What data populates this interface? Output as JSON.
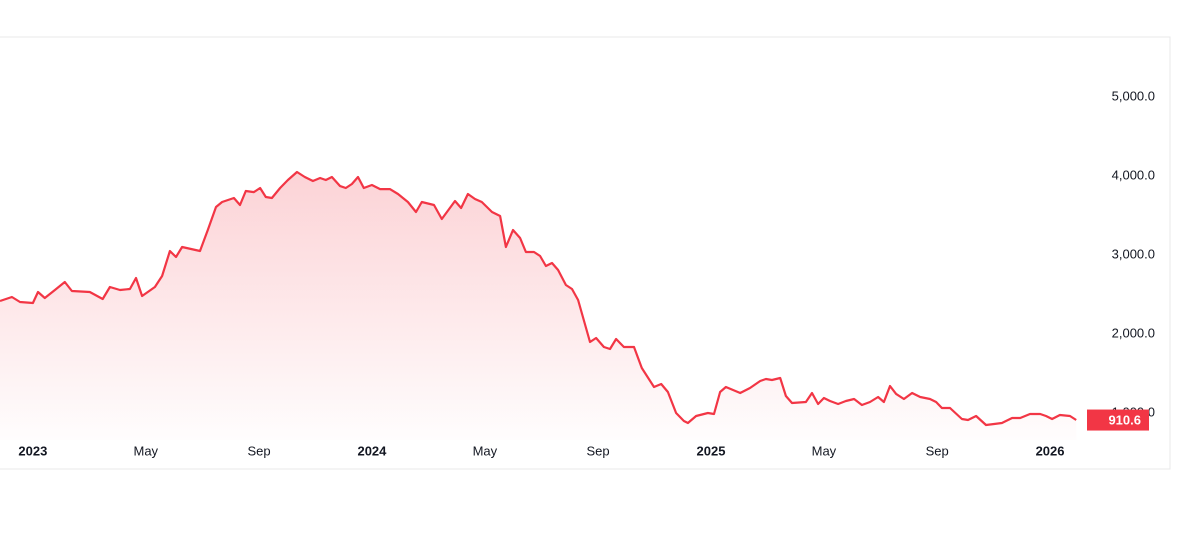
{
  "chart_data": {
    "type": "line",
    "x": [
      2022.903,
      2022.938,
      2022.962,
      2023.0,
      2023.015,
      2023.035,
      2023.065,
      2023.094,
      2023.115,
      2023.168,
      2023.206,
      2023.227,
      2023.257,
      2023.286,
      2023.304,
      2023.322,
      2023.36,
      2023.381,
      2023.404,
      2023.422,
      2023.44,
      2023.493,
      2023.516,
      2023.54,
      2023.558,
      2023.593,
      2023.611,
      2023.628,
      2023.652,
      2023.67,
      2023.687,
      2023.705,
      2023.729,
      2023.752,
      2023.779,
      2023.802,
      2023.826,
      2023.847,
      2023.864,
      2023.882,
      2023.906,
      2023.923,
      2023.941,
      2023.959,
      2023.976,
      2024.0,
      2024.024,
      2024.053,
      2024.077,
      2024.106,
      2024.13,
      2024.147,
      2024.183,
      2024.206,
      2024.245,
      2024.263,
      2024.283,
      2024.304,
      2024.324,
      2024.354,
      2024.378,
      2024.395,
      2024.416,
      2024.437,
      2024.454,
      2024.478,
      2024.496,
      2024.513,
      2024.531,
      2024.549,
      2024.572,
      2024.59,
      2024.608,
      2024.643,
      2024.661,
      2024.684,
      2024.702,
      2024.72,
      2024.743,
      2024.773,
      2024.796,
      2024.832,
      2024.853,
      2024.873,
      2024.897,
      2024.92,
      2024.932,
      2024.956,
      2024.991,
      2025.009,
      2025.027,
      2025.044,
      2025.086,
      2025.115,
      2025.145,
      2025.162,
      2025.18,
      2025.204,
      2025.221,
      2025.239,
      2025.28,
      2025.298,
      2025.316,
      2025.333,
      2025.351,
      2025.375,
      2025.398,
      2025.422,
      2025.445,
      2025.469,
      2025.493,
      2025.51,
      2025.528,
      2025.546,
      2025.569,
      2025.593,
      2025.617,
      2025.646,
      2025.664,
      2025.681,
      2025.705,
      2025.74,
      2025.758,
      2025.782,
      2025.811,
      2025.835,
      2025.858,
      2025.888,
      2025.912,
      2025.941,
      2025.971,
      2025.988,
      2026.006,
      2026.029,
      2026.059,
      2026.077
    ],
    "series": [
      {
        "color": "#f23645",
        "values": [
          2418,
          2468,
          2405,
          2392,
          2532,
          2456,
          2557,
          2658,
          2544,
          2532,
          2443,
          2595,
          2557,
          2570,
          2709,
          2481,
          2595,
          2734,
          3051,
          2975,
          3101,
          3051,
          3316,
          3608,
          3671,
          3722,
          3633,
          3810,
          3797,
          3848,
          3734,
          3722,
          3848,
          3949,
          4051,
          3987,
          3937,
          3975,
          3949,
          3987,
          3873,
          3848,
          3899,
          3987,
          3848,
          3886,
          3835,
          3835,
          3772,
          3671,
          3544,
          3671,
          3633,
          3456,
          3684,
          3595,
          3772,
          3709,
          3671,
          3544,
          3494,
          3101,
          3316,
          3215,
          3038,
          3038,
          2987,
          2861,
          2899,
          2810,
          2620,
          2570,
          2430,
          1899,
          1949,
          1835,
          1810,
          1937,
          1835,
          1835,
          1570,
          1329,
          1367,
          1266,
          1000,
          899,
          873,
          962,
          1000,
          987,
          1266,
          1329,
          1253,
          1316,
          1405,
          1430,
          1418,
          1443,
          1215,
          1127,
          1139,
          1253,
          1114,
          1190,
          1152,
          1114,
          1152,
          1177,
          1101,
          1139,
          1203,
          1139,
          1342,
          1241,
          1177,
          1253,
          1203,
          1177,
          1139,
          1063,
          1063,
          924,
          911,
          962,
          848,
          861,
          873,
          937,
          937,
          987,
          987,
          962,
          924,
          975,
          962,
          910.6
        ]
      }
    ],
    "xlim": [
      2022.903,
      2026.342
    ],
    "xticks": [
      {
        "value": 2023,
        "label": "2023"
      },
      {
        "value": 2023.333,
        "label": "May"
      },
      {
        "value": 2023.667,
        "label": "Sep"
      },
      {
        "value": 2024,
        "label": "2024"
      },
      {
        "value": 2024.333,
        "label": "May"
      },
      {
        "value": 2024.667,
        "label": "Sep"
      },
      {
        "value": 2025,
        "label": "2025"
      },
      {
        "value": 2025.333,
        "label": "May"
      },
      {
        "value": 2025.667,
        "label": "Sep"
      },
      {
        "value": 2026,
        "label": "2026"
      }
    ],
    "ylim": [
      658,
      5760
    ],
    "yticks": [
      {
        "value": 1000,
        "label": "1,000.0"
      },
      {
        "value": 2000,
        "label": "2,000.0"
      },
      {
        "value": 3000,
        "label": "3,000.0"
      },
      {
        "value": 4000,
        "label": "4,000.0"
      },
      {
        "value": 5000,
        "label": "5,000.0"
      }
    ],
    "grid": false
  }
}
